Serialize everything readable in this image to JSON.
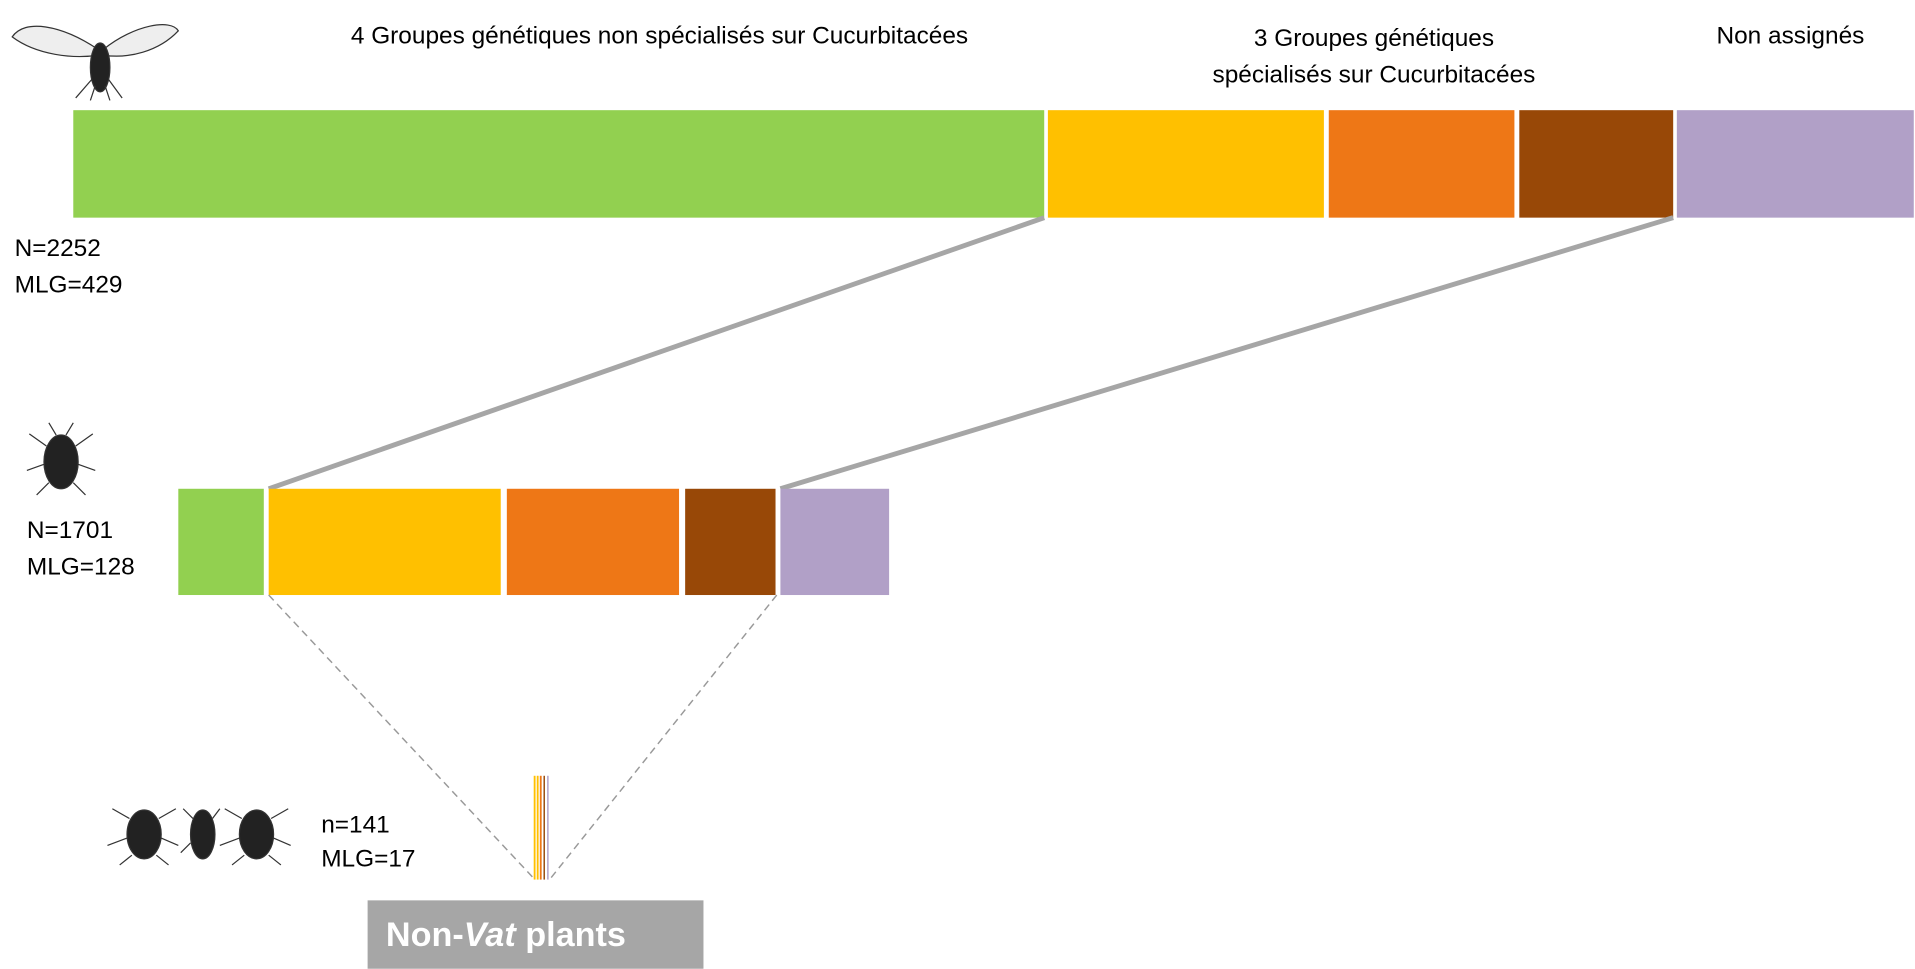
{
  "header": {
    "non_specialized": "4 Groupes génétiques non spécialisés sur Cucurbitacées",
    "specialized": [
      "3 Groupes génétiques",
      "spécialisés sur Cucurbitacées"
    ],
    "unassigned": "Non assignés"
  },
  "levels": [
    {
      "n": "N=2252",
      "mlg": "MLG=429"
    },
    {
      "n": "N=1701",
      "mlg": "MLG=128"
    },
    {
      "n": "n=141",
      "mlg": "MLG=17"
    }
  ],
  "box": {
    "prefix": "Non-",
    "italic": "Vat",
    "suffix": " plants"
  }
}
